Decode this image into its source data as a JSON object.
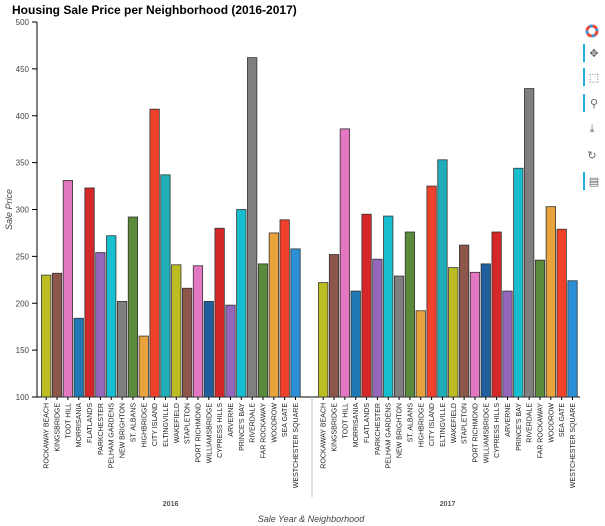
{
  "chart_data": {
    "type": "bar",
    "title": "Housing Sale Price per Neighborhood (2016-2017)",
    "xlabel": "Sale Year & Neighborhood",
    "ylabel": "Sale Price",
    "ylim": [
      100,
      500
    ],
    "yticks": [
      "100",
      "150",
      "200",
      "250",
      "300",
      "350",
      "400",
      "450",
      "500"
    ],
    "grid": false,
    "groups": [
      {
        "label": "2016",
        "bars": [
          {
            "label": "ROCKAWAY BEACH",
            "value": 230,
            "color": "#bcbd22"
          },
          {
            "label": "KINGSBRIDGE",
            "value": 232,
            "color": "#8c564b"
          },
          {
            "label": "TODT HILL",
            "value": 331,
            "color": "#e377c2"
          },
          {
            "label": "MORRISANIA",
            "value": 184,
            "color": "#1f77b4"
          },
          {
            "label": "FLATLANDS",
            "value": 323,
            "color": "#d62728"
          },
          {
            "label": "PARKCHESTER",
            "value": 254,
            "color": "#9467bd"
          },
          {
            "label": "PELHAM GARDENS",
            "value": 272,
            "color": "#17becf"
          },
          {
            "label": "NEW BRIGHTON",
            "value": 202,
            "color": "#7f7f7f"
          },
          {
            "label": "ST. ALBANS",
            "value": 292,
            "color": "#5a8a3c"
          },
          {
            "label": "HIGHBRIDGE",
            "value": 165,
            "color": "#e8a33d"
          },
          {
            "label": "CITY ISLAND",
            "value": 407,
            "color": "#f0412a"
          },
          {
            "label": "ELTINGVILLE",
            "value": 337,
            "color": "#1faeb8"
          },
          {
            "label": "WAKEFIELD",
            "value": 241,
            "color": "#bcbd22"
          },
          {
            "label": "STAPLETON",
            "value": 216,
            "color": "#8c564b"
          },
          {
            "label": "PORT RICHMOND",
            "value": 240,
            "color": "#e377c2"
          },
          {
            "label": "WILLIAMSBRIDGE",
            "value": 202,
            "color": "#1f5f9e"
          },
          {
            "label": "CYPRESS HILLS",
            "value": 280,
            "color": "#d62728"
          },
          {
            "label": "ARVERNE",
            "value": 198,
            "color": "#9467bd"
          },
          {
            "label": "PRINCE'S BAY",
            "value": 300,
            "color": "#17becf"
          },
          {
            "label": "RIVERDALE",
            "value": 462,
            "color": "#7f7f7f"
          },
          {
            "label": "FAR ROCKAWAY",
            "value": 242,
            "color": "#5a8a3c"
          },
          {
            "label": "WOODROW",
            "value": 275,
            "color": "#e8a33d"
          },
          {
            "label": "SEA GATE",
            "value": 289,
            "color": "#f0412a"
          },
          {
            "label": "WESTCHESTER SQUARE",
            "value": 258,
            "color": "#2c8fd6"
          }
        ]
      },
      {
        "label": "2017",
        "bars": [
          {
            "label": "ROCKAWAY BEACH",
            "value": 222,
            "color": "#bcbd22"
          },
          {
            "label": "KINGSBRIDGE",
            "value": 252,
            "color": "#8c564b"
          },
          {
            "label": "TODT HILL",
            "value": 386,
            "color": "#e377c2"
          },
          {
            "label": "MORRISANIA",
            "value": 213,
            "color": "#1f77b4"
          },
          {
            "label": "FLATLANDS",
            "value": 295,
            "color": "#d62728"
          },
          {
            "label": "PARKCHESTER",
            "value": 247,
            "color": "#9467bd"
          },
          {
            "label": "PELHAM GARDENS",
            "value": 293,
            "color": "#17becf"
          },
          {
            "label": "NEW BRIGHTON",
            "value": 229,
            "color": "#7f7f7f"
          },
          {
            "label": "ST. ALBANS",
            "value": 276,
            "color": "#5a8a3c"
          },
          {
            "label": "HIGHBRIDGE",
            "value": 192,
            "color": "#e8a33d"
          },
          {
            "label": "CITY ISLAND",
            "value": 325,
            "color": "#f0412a"
          },
          {
            "label": "ELTINGVILLE",
            "value": 353,
            "color": "#1faeb8"
          },
          {
            "label": "WAKEFIELD",
            "value": 238,
            "color": "#bcbd22"
          },
          {
            "label": "STAPLETON",
            "value": 262,
            "color": "#8c564b"
          },
          {
            "label": "PORT RICHMOND",
            "value": 233,
            "color": "#e377c2"
          },
          {
            "label": "WILLIAMSBRIDGE",
            "value": 242,
            "color": "#1f5f9e"
          },
          {
            "label": "CYPRESS HILLS",
            "value": 276,
            "color": "#d62728"
          },
          {
            "label": "ARVERNE",
            "value": 213,
            "color": "#9467bd"
          },
          {
            "label": "PRINCE'S BAY",
            "value": 344,
            "color": "#17becf"
          },
          {
            "label": "RIVERDALE",
            "value": 429,
            "color": "#7f7f7f"
          },
          {
            "label": "FAR ROCKAWAY",
            "value": 246,
            "color": "#5a8a3c"
          },
          {
            "label": "WOODROW",
            "value": 303,
            "color": "#e8a33d"
          },
          {
            "label": "SEA GATE",
            "value": 279,
            "color": "#f0412a"
          },
          {
            "label": "WESTCHESTER SQUARE",
            "value": 224,
            "color": "#2c8fd6"
          }
        ]
      }
    ]
  },
  "toolbar": {
    "tools": [
      {
        "name": "logo-icon",
        "glyph": ""
      },
      {
        "name": "pan-icon",
        "glyph": "✥"
      },
      {
        "name": "box-zoom-icon",
        "glyph": "⬚"
      },
      {
        "name": "wheel-zoom-icon",
        "glyph": "⚲"
      },
      {
        "name": "save-icon",
        "glyph": "⤓"
      },
      {
        "name": "reset-icon",
        "glyph": "↻"
      },
      {
        "name": "hover-icon",
        "glyph": "▤"
      }
    ]
  }
}
